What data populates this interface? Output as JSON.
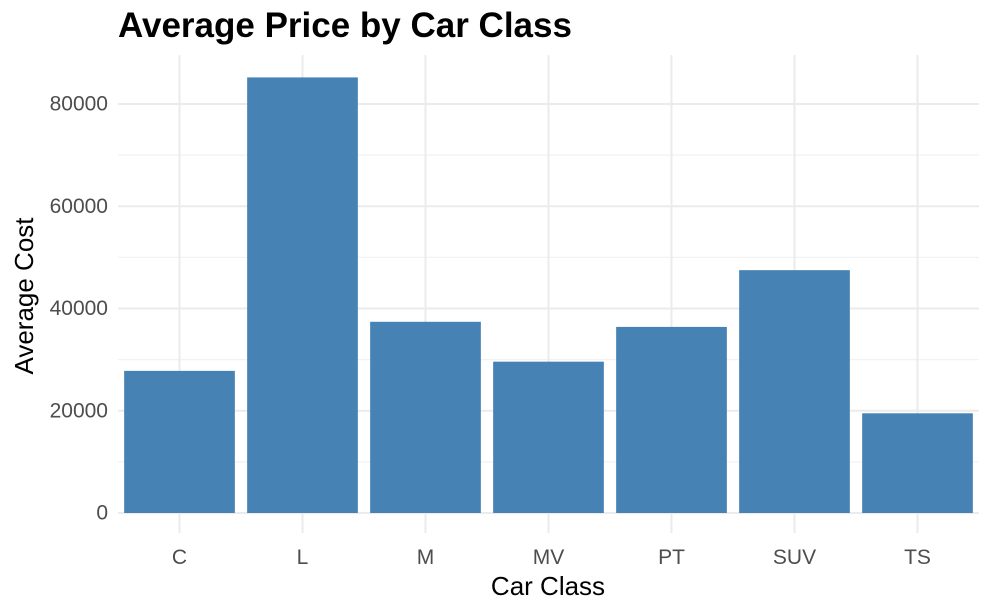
{
  "chart_data": {
    "type": "bar",
    "title": "Average Price by Car Class",
    "xlabel": "Car Class",
    "ylabel": "Average Cost",
    "categories": [
      "C",
      "L",
      "M",
      "MV",
      "PT",
      "SUV",
      "TS"
    ],
    "values": [
      27800,
      85200,
      37400,
      29600,
      36400,
      47500,
      19500
    ],
    "ylim": [
      0,
      90000
    ],
    "yticks": [
      0,
      20000,
      40000,
      60000,
      80000
    ],
    "ytick_labels": [
      "0",
      "20000",
      "40000",
      "60000",
      "80000"
    ],
    "bar_color": "#4682b4",
    "grid": true,
    "legend": false
  }
}
